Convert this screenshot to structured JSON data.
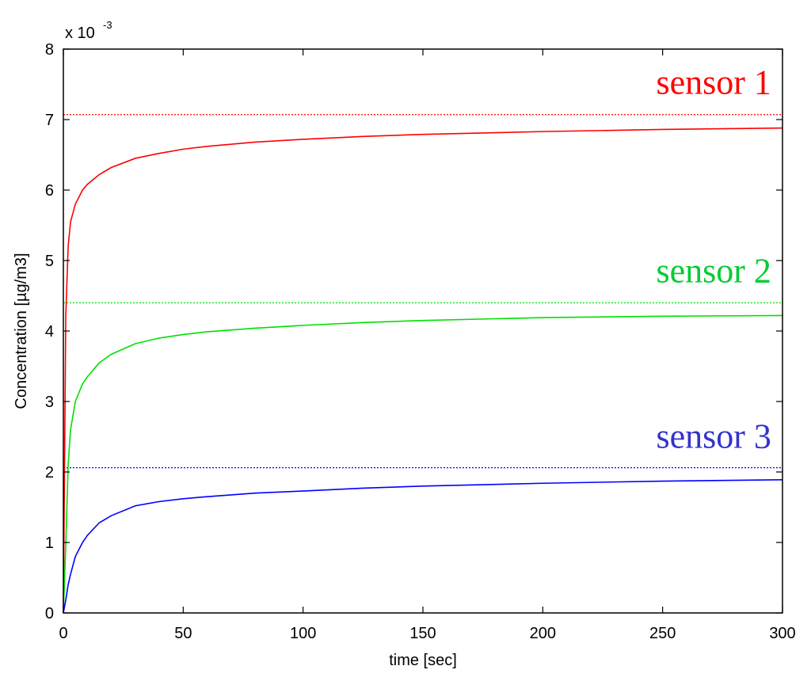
{
  "chart_data": {
    "type": "line",
    "title": "",
    "xlabel": "time [sec]",
    "ylabel": "Concentration [µg/m3]",
    "y_multiplier_label": "x 10",
    "y_multiplier_exponent": "-3",
    "xlim": [
      0,
      300
    ],
    "ylim": [
      0,
      8
    ],
    "x_ticks": [
      0,
      50,
      100,
      150,
      200,
      250,
      300
    ],
    "y_ticks": [
      0,
      1,
      2,
      3,
      4,
      5,
      6,
      7,
      8
    ],
    "grid": false,
    "legend": "none",
    "series": [
      {
        "name": "sensor 1",
        "color": "#ff0000",
        "x": [
          0,
          1,
          2,
          3,
          5,
          8,
          10,
          15,
          20,
          30,
          40,
          50,
          60,
          80,
          100,
          125,
          150,
          175,
          200,
          250,
          300
        ],
        "y": [
          0.0,
          4.2,
          5.2,
          5.55,
          5.8,
          6.0,
          6.08,
          6.22,
          6.32,
          6.45,
          6.52,
          6.58,
          6.62,
          6.68,
          6.72,
          6.76,
          6.79,
          6.81,
          6.83,
          6.86,
          6.88
        ],
        "asymptote": 7.07
      },
      {
        "name": "sensor 2",
        "color": "#00e000",
        "x": [
          0,
          1,
          2,
          3,
          5,
          8,
          10,
          15,
          20,
          30,
          40,
          50,
          60,
          80,
          100,
          125,
          150,
          175,
          200,
          250,
          300
        ],
        "y": [
          0.0,
          0.95,
          2.1,
          2.6,
          3.0,
          3.25,
          3.35,
          3.55,
          3.67,
          3.82,
          3.9,
          3.95,
          3.99,
          4.04,
          4.08,
          4.12,
          4.15,
          4.17,
          4.19,
          4.21,
          4.22
        ],
        "asymptote": 4.4
      },
      {
        "name": "sensor 3",
        "color": "#0000ff",
        "x": [
          0,
          1,
          2,
          3,
          5,
          8,
          10,
          15,
          20,
          30,
          40,
          50,
          60,
          80,
          100,
          125,
          150,
          175,
          200,
          250,
          300
        ],
        "y": [
          0.0,
          0.18,
          0.4,
          0.55,
          0.8,
          1.0,
          1.1,
          1.28,
          1.38,
          1.52,
          1.58,
          1.62,
          1.65,
          1.7,
          1.73,
          1.77,
          1.8,
          1.82,
          1.84,
          1.87,
          1.89
        ],
        "asymptote": 2.06
      }
    ],
    "annotations": [
      {
        "text": "sensor 1",
        "color": "#ff0000",
        "x": 298,
        "y": 7.52
      },
      {
        "text": "sensor 2",
        "color": "#00cc33",
        "x": 298,
        "y": 4.85
      },
      {
        "text": "sensor 3",
        "color": "#3333cc",
        "x": 298,
        "y": 2.5
      }
    ]
  }
}
